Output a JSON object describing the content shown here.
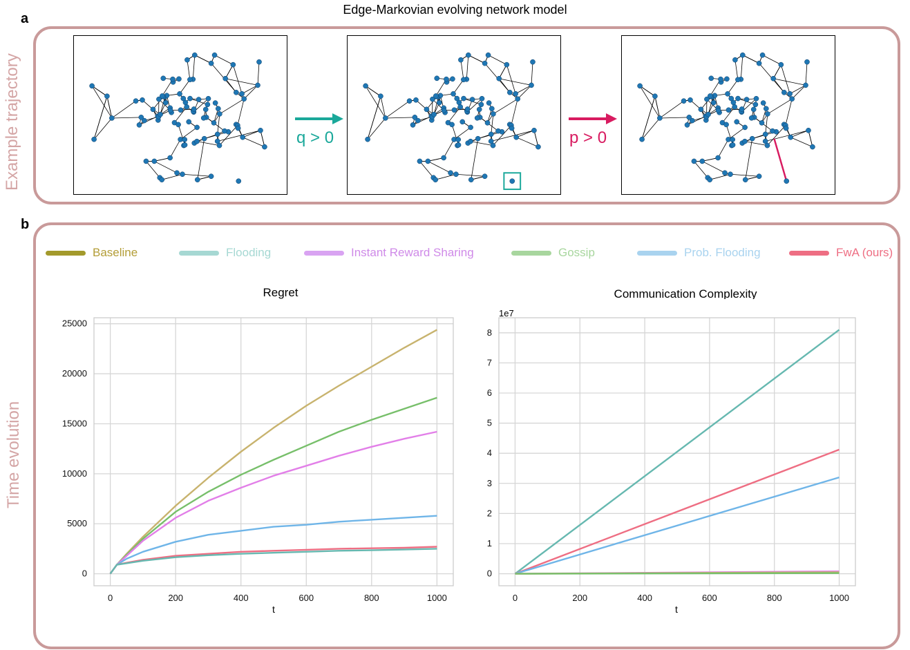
{
  "figure": {
    "main_title": "Edge-Markovian evolving network model",
    "panel_a_letter": "a",
    "panel_b_letter": "b",
    "panel_a_side_label": "Example trajectory",
    "panel_b_side_label": "Time evolution",
    "arrow1_label": "q > 0",
    "arrow2_label": "p > 0",
    "colors": {
      "frame": "#c99a9a",
      "arrow1": "#1aa89a",
      "arrow2": "#d81b60",
      "node": "#1f77b4"
    }
  },
  "legend": [
    {
      "name": "Baseline",
      "color": "#a39a2c"
    },
    {
      "name": "Flooding",
      "color": "#a6d8d3"
    },
    {
      "name": "Instant Reward Sharing",
      "color": "#d9a3f2"
    },
    {
      "name": "Gossip",
      "color": "#a8d69e"
    },
    {
      "name": "Prob. Flooding",
      "color": "#a9d3ef"
    },
    {
      "name": "FwA (ours)",
      "color": "#ee6e83"
    }
  ],
  "chart_data": [
    {
      "type": "line",
      "title": "Regret",
      "xlabel": "t",
      "ylabel": "",
      "xlim": [
        -50,
        1050
      ],
      "ylim": [
        -1200,
        25600
      ],
      "xticks": [
        0,
        200,
        400,
        600,
        800,
        1000
      ],
      "yticks": [
        0,
        5000,
        10000,
        15000,
        20000,
        25000
      ],
      "grid": true,
      "x": [
        0,
        20,
        50,
        100,
        200,
        300,
        400,
        500,
        600,
        700,
        800,
        900,
        1000
      ],
      "series": [
        {
          "name": "Baseline",
          "color": "#c8b36e",
          "values": [
            0,
            900,
            2000,
            3700,
            6800,
            9600,
            12200,
            14600,
            16800,
            18800,
            20700,
            22600,
            24400
          ]
        },
        {
          "name": "Gossip",
          "color": "#77bf6a",
          "values": [
            0,
            900,
            1900,
            3500,
            6200,
            8200,
            9900,
            11400,
            12800,
            14200,
            15400,
            16500,
            17600
          ]
        },
        {
          "name": "Instant Reward Sharing",
          "color": "#e27fe8",
          "values": [
            0,
            900,
            1800,
            3300,
            5600,
            7300,
            8600,
            9800,
            10800,
            11800,
            12700,
            13500,
            14200
          ]
        },
        {
          "name": "Prob. Flooding",
          "color": "#6fb5e8",
          "values": [
            0,
            900,
            1500,
            2200,
            3200,
            3900,
            4300,
            4700,
            4900,
            5200,
            5400,
            5600,
            5800
          ]
        },
        {
          "name": "FwA (ours)",
          "color": "#ee6e83",
          "values": [
            0,
            900,
            1100,
            1400,
            1800,
            2000,
            2200,
            2300,
            2400,
            2500,
            2550,
            2600,
            2700
          ]
        },
        {
          "name": "Flooding",
          "color": "#66b8b0",
          "values": [
            0,
            900,
            1050,
            1300,
            1650,
            1850,
            2000,
            2100,
            2200,
            2300,
            2350,
            2420,
            2500
          ]
        }
      ]
    },
    {
      "type": "line",
      "title": "Communication Complexity",
      "xlabel": "t",
      "ylabel": "",
      "offset_text": "1e7",
      "xlim": [
        -50,
        1050
      ],
      "ylim": [
        -0.4,
        8.5
      ],
      "xticks": [
        0,
        200,
        400,
        600,
        800,
        1000
      ],
      "yticks": [
        0,
        1,
        2,
        3,
        4,
        5,
        6,
        7,
        8
      ],
      "grid": true,
      "x": [
        0,
        1000
      ],
      "series": [
        {
          "name": "Flooding",
          "color": "#66b8b0",
          "values": [
            0,
            8.1
          ]
        },
        {
          "name": "FwA (ours)",
          "color": "#ee6e83",
          "values": [
            0,
            4.12
          ]
        },
        {
          "name": "Prob. Flooding",
          "color": "#6fb5e8",
          "values": [
            0,
            3.2
          ]
        },
        {
          "name": "Instant Reward Sharing",
          "color": "#e27fe8",
          "values": [
            0,
            0.08
          ]
        },
        {
          "name": "Baseline",
          "color": "#c8b36e",
          "values": [
            0,
            0.05
          ]
        },
        {
          "name": "Gossip",
          "color": "#77bf6a",
          "values": [
            0,
            0.02
          ]
        }
      ]
    }
  ]
}
